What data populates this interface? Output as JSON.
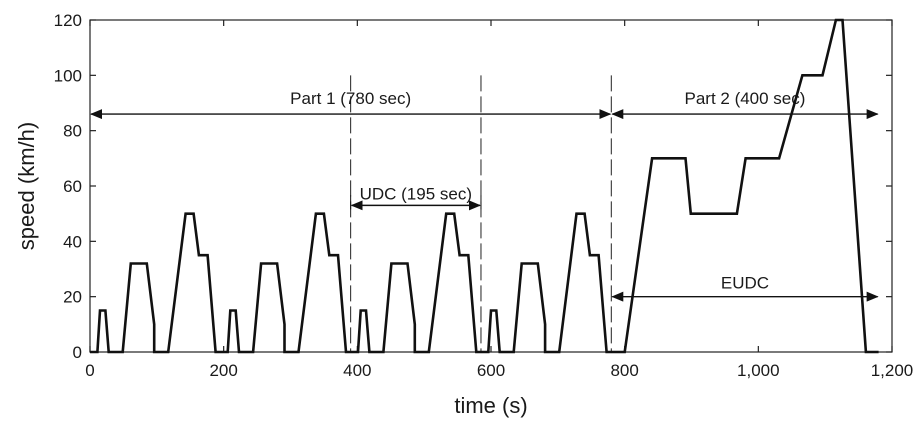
{
  "chart_data": {
    "type": "line",
    "title": "",
    "xlabel": "time (s)",
    "ylabel": "speed (km/h)",
    "xlim": [
      0,
      1200
    ],
    "ylim": [
      0,
      120
    ],
    "grid": false,
    "x_ticks": [
      0,
      200,
      400,
      600,
      800,
      1000,
      1200
    ],
    "x_tick_labels": [
      "0",
      "200",
      "400",
      "600",
      "800",
      "1,000",
      "1,200"
    ],
    "y_ticks": [
      0,
      20,
      40,
      60,
      80,
      100,
      120
    ],
    "y_tick_labels": [
      "0",
      "20",
      "40",
      "60",
      "80",
      "100",
      "120"
    ],
    "colors": {
      "line": "#111111",
      "axis": "#222222"
    },
    "series": [
      {
        "points": [
          [
            0,
            0
          ],
          [
            11,
            0
          ],
          [
            15,
            15
          ],
          [
            23,
            15
          ],
          [
            28,
            0
          ],
          [
            49,
            0
          ],
          [
            61,
            32
          ],
          [
            85,
            32
          ],
          [
            96,
            10
          ],
          [
            96,
            0
          ],
          [
            117,
            0
          ],
          [
            143,
            50
          ],
          [
            155,
            50
          ],
          [
            163,
            35
          ],
          [
            176,
            35
          ],
          [
            188,
            0
          ],
          [
            195,
            0
          ],
          [
            206,
            0
          ],
          [
            210,
            15
          ],
          [
            218,
            15
          ],
          [
            223,
            0
          ],
          [
            244,
            0
          ],
          [
            256,
            32
          ],
          [
            280,
            32
          ],
          [
            291,
            10
          ],
          [
            291,
            0
          ],
          [
            312,
            0
          ],
          [
            338,
            50
          ],
          [
            350,
            50
          ],
          [
            358,
            35
          ],
          [
            371,
            35
          ],
          [
            383,
            0
          ],
          [
            390,
            0
          ],
          [
            401,
            0
          ],
          [
            405,
            15
          ],
          [
            413,
            15
          ],
          [
            418,
            0
          ],
          [
            439,
            0
          ],
          [
            451,
            32
          ],
          [
            475,
            32
          ],
          [
            486,
            10
          ],
          [
            486,
            0
          ],
          [
            507,
            0
          ],
          [
            533,
            50
          ],
          [
            545,
            50
          ],
          [
            553,
            35
          ],
          [
            566,
            35
          ],
          [
            578,
            0
          ],
          [
            585,
            0
          ],
          [
            596,
            0
          ],
          [
            600,
            15
          ],
          [
            608,
            15
          ],
          [
            613,
            0
          ],
          [
            634,
            0
          ],
          [
            646,
            32
          ],
          [
            670,
            32
          ],
          [
            681,
            10
          ],
          [
            681,
            0
          ],
          [
            702,
            0
          ],
          [
            728,
            50
          ],
          [
            740,
            50
          ],
          [
            748,
            35
          ],
          [
            761,
            35
          ],
          [
            773,
            0
          ],
          [
            780,
            0
          ],
          [
            800,
            0
          ],
          [
            841,
            70
          ],
          [
            891,
            70
          ],
          [
            899,
            50
          ],
          [
            968,
            50
          ],
          [
            981,
            70
          ],
          [
            1031,
            70
          ],
          [
            1066,
            100
          ],
          [
            1096,
            100
          ],
          [
            1116,
            120
          ],
          [
            1126,
            120
          ],
          [
            1161,
            0
          ],
          [
            1180,
            0
          ]
        ]
      }
    ],
    "annotations": {
      "part1": {
        "label": "Part 1 (780 sec)",
        "x_start": 0,
        "x_end": 780,
        "y": 86
      },
      "part2": {
        "label": "Part 2 (400 sec)",
        "x_start": 780,
        "x_end": 1180,
        "y": 86
      },
      "udc": {
        "label": "UDC (195 sec)",
        "x_start": 390,
        "x_end": 585,
        "y": 53
      },
      "eudc": {
        "label": "EUDC",
        "x_start": 780,
        "x_end": 1180,
        "y": 20
      },
      "dashed_boundaries": [
        390,
        585,
        780
      ]
    }
  }
}
